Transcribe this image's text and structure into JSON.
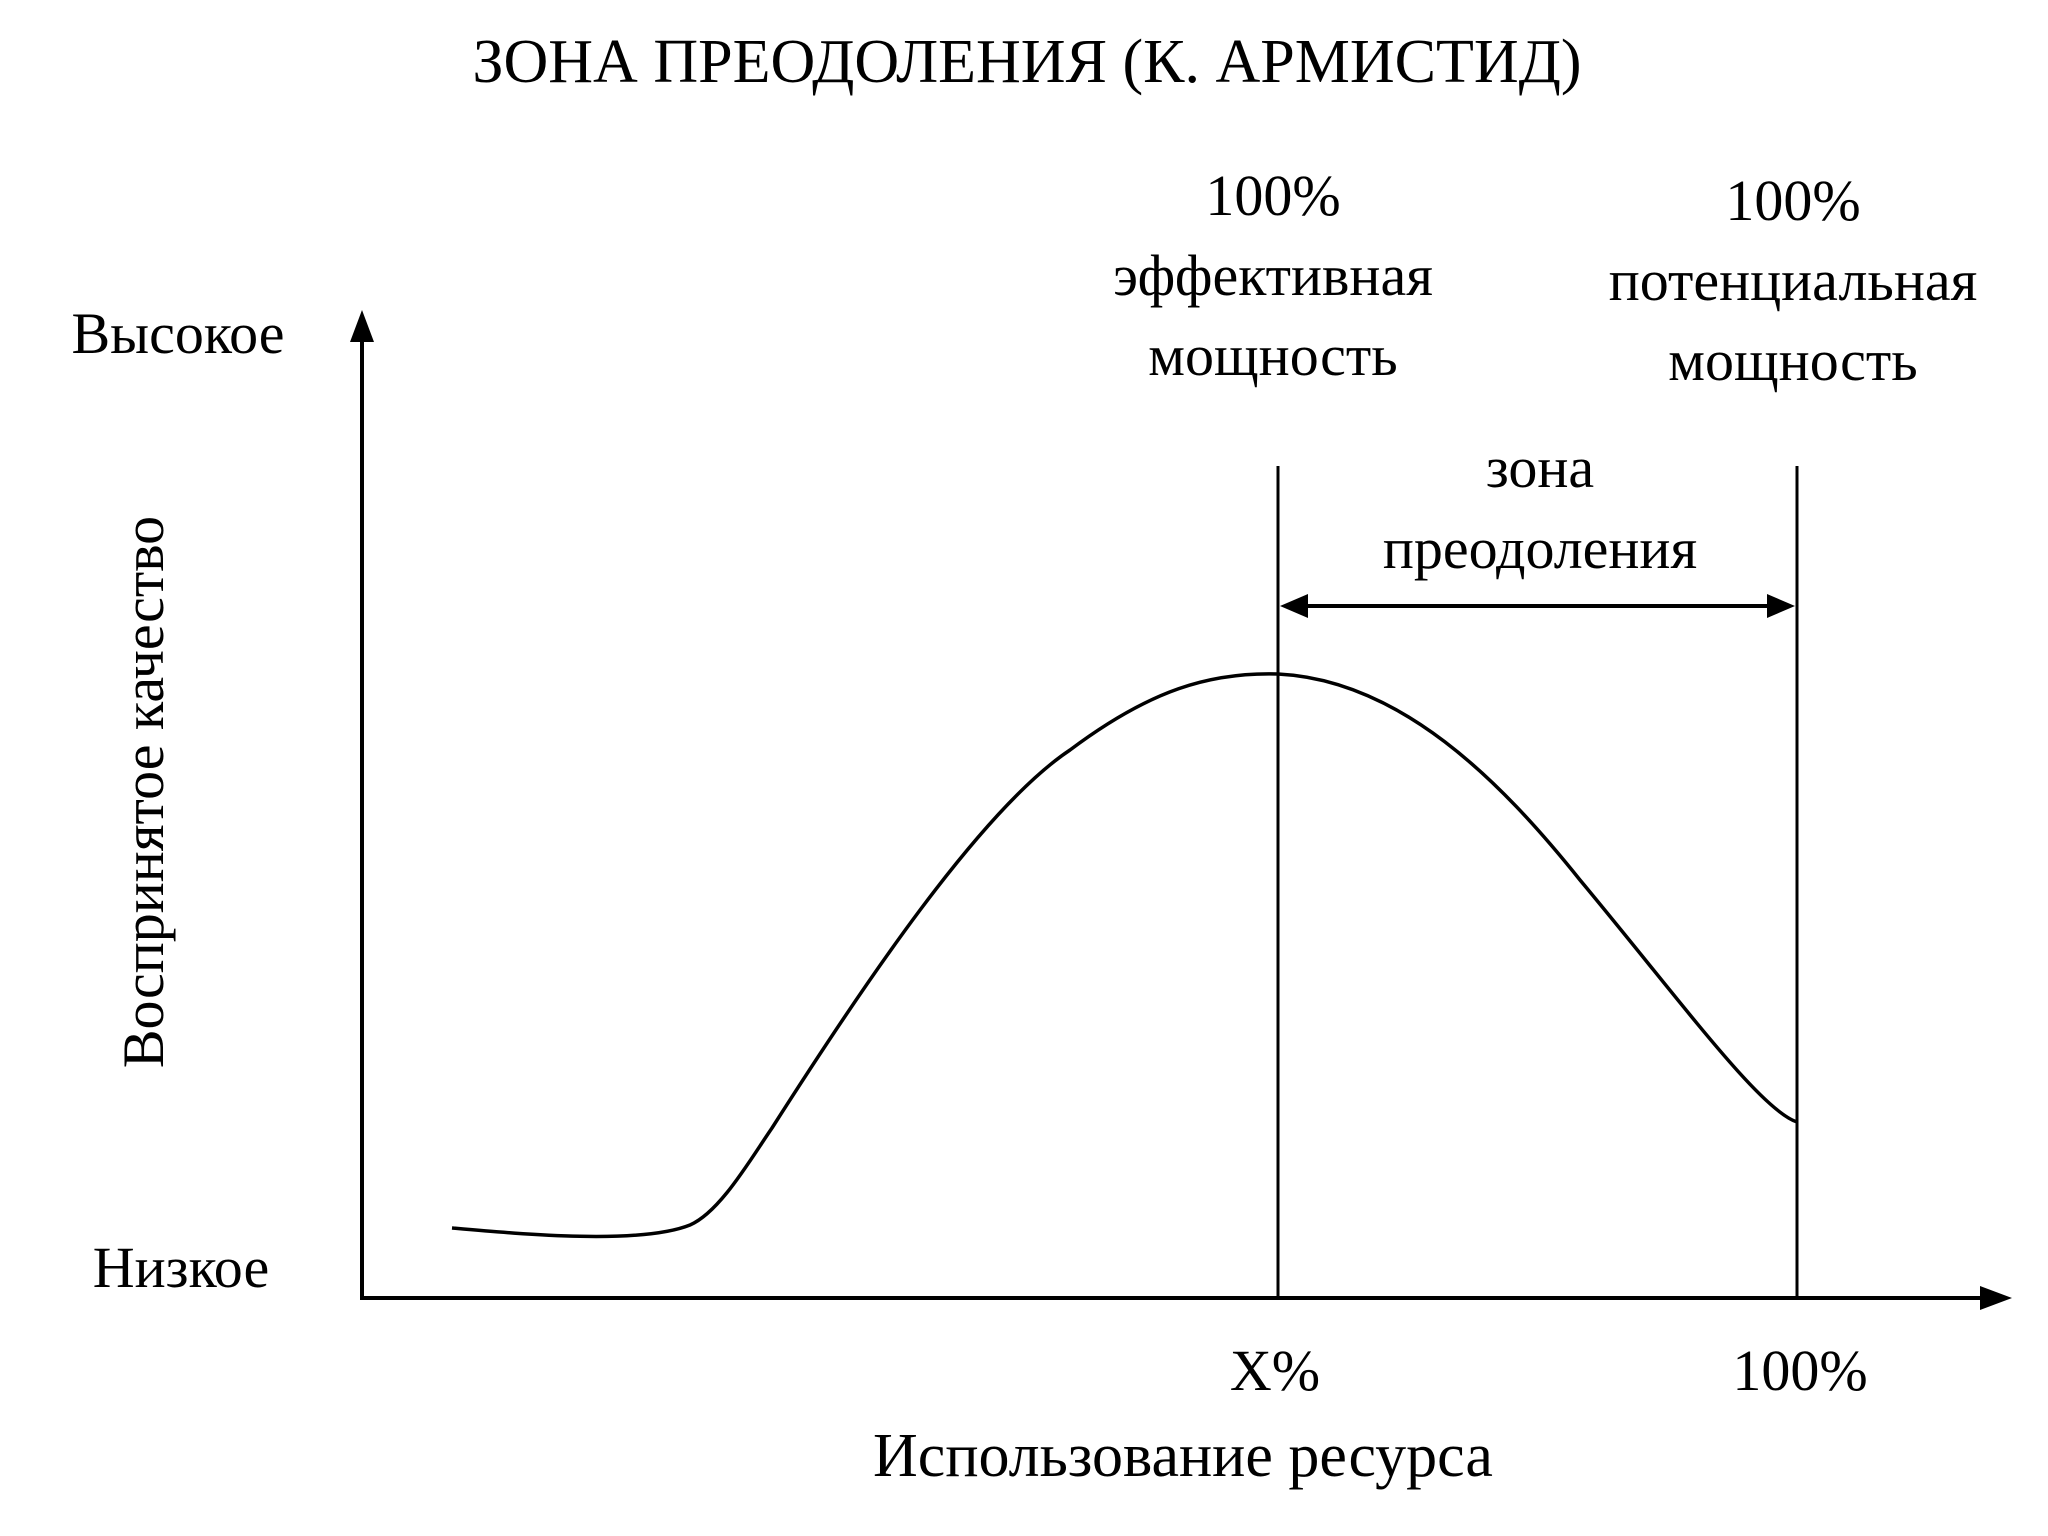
{
  "title": "ЗОНА ПРЕОДОЛЕНИЯ (К. АРМИСТИД)",
  "y_axis": {
    "label": "Воспринятое качество",
    "high_label": "Высокое",
    "low_label": "Низкое"
  },
  "x_axis": {
    "label": "Использование ресурса",
    "ticks": [
      "X%",
      "100%"
    ]
  },
  "markers": {
    "effective": {
      "lines": [
        "100%",
        "эффективная",
        "мощность"
      ]
    },
    "potential": {
      "lines": [
        "100%",
        "потенциальная",
        "мощность"
      ]
    }
  },
  "zone": {
    "lines": [
      "зона",
      "преодоления"
    ]
  },
  "colors": {
    "ink": "#000000",
    "background": "#ffffff"
  }
}
